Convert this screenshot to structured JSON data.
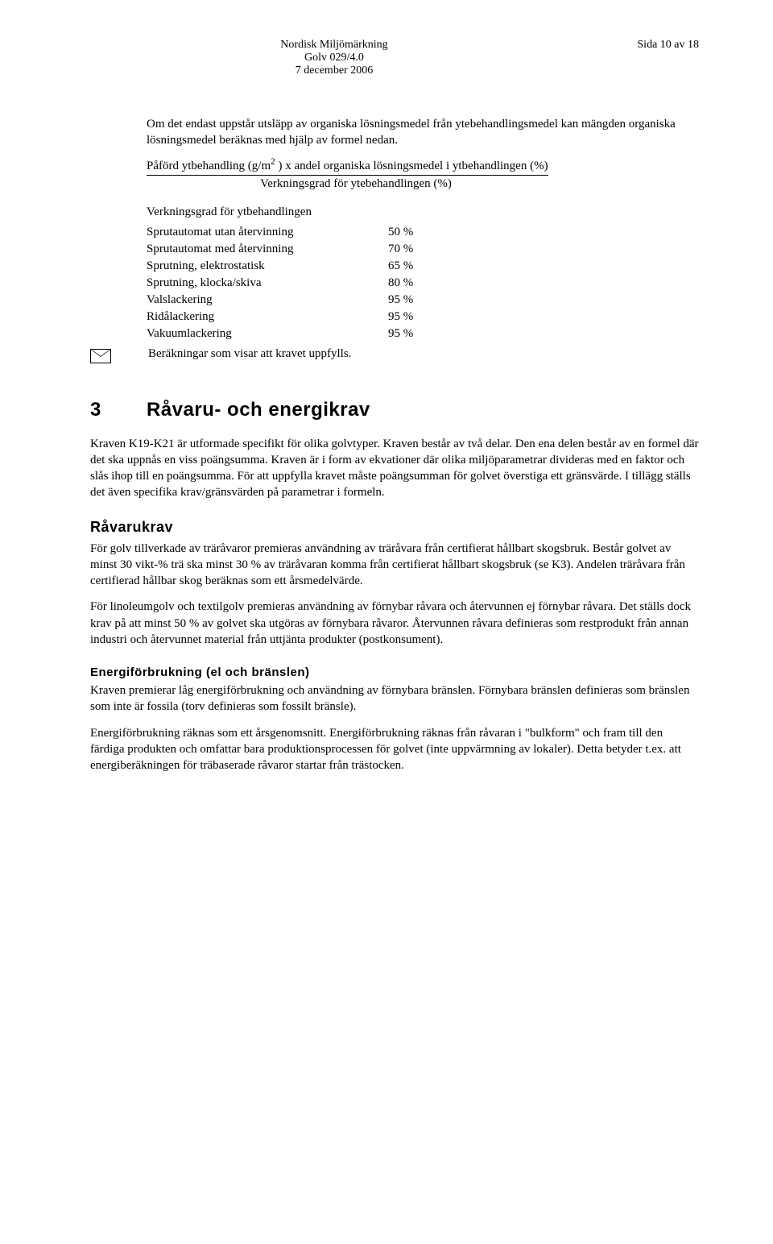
{
  "header": {
    "line1": "Nordisk Miljömärkning",
    "line2": "Golv 029/4.0",
    "line3": "7 december 2006",
    "page_label": "Sida 10 av 18"
  },
  "intro": {
    "p1": "Om det endast uppstår utsläpp av organiska lösningsmedel från ytebehandlingsmedel kan mängden organiska lösningsmedel beräknas med hjälp av formel nedan."
  },
  "formula": {
    "numerator_a": "Påförd ytbehandling (g/m",
    "numerator_sup": "2",
    "numerator_b": " ) x andel organiska lösningsmedel i ytbehandlingen (%)",
    "denominator": "Verkningsgrad för ytebehandlingen (%)"
  },
  "vg": {
    "heading": "Verkningsgrad för ytbehandlingen",
    "rows": [
      {
        "label": "Sprutautomat utan återvinning",
        "value": "50 %"
      },
      {
        "label": "Sprutautomat med återvinning",
        "value": "70 %"
      },
      {
        "label": "Sprutning, elektrostatisk",
        "value": "65 %"
      },
      {
        "label": "Sprutning, klocka/skiva",
        "value": "80 %"
      },
      {
        "label": "Valslackering",
        "value": "95 %"
      },
      {
        "label": "Ridålackering",
        "value": "95 %"
      },
      {
        "label": "Vakuumlackering",
        "value": "95 %"
      }
    ]
  },
  "mail_note": "Beräkningar som visar att kravet uppfylls.",
  "section3": {
    "num": "3",
    "title": "Råvaru- och energikrav",
    "p1": "Kraven K19-K21 är utformade specifikt för olika golvtyper. Kraven består av två delar. Den ena delen består av en formel där det ska uppnås en viss poängsumma. Kraven är i form av ekvationer där olika miljöparametrar divideras med en faktor och slås ihop till en poängsumma. För att uppfylla kravet måste poängsumman för golvet överstiga ett gränsvärde. I tillägg ställs det även specifika krav/gränsvärden på parametrar i formeln.",
    "ravarukrav": {
      "title": "Råvarukrav",
      "p1": "För golv tillverkade av träråvaror premieras användning av träråvara från certifierat hållbart skogsbruk. Består golvet av minst 30 vikt-% trä ska minst 30 % av träråvaran komma från certifierat hållbart skogsbruk (se K3). Andelen träråvara från certifierad hållbar skog beräknas som ett årsmedelvärde.",
      "p2": "För linoleumgolv och textilgolv premieras användning av förnybar råvara och återvunnen ej förnybar råvara. Det ställs dock krav på att minst 50 % av golvet ska utgöras av förnybara råvaror. Återvunnen råvara definieras som restprodukt från annan industri och återvunnet material från uttjänta produkter (postkonsument)."
    },
    "energi": {
      "title": "Energiförbrukning (el och bränslen)",
      "p1": "Kraven premierar låg energiförbrukning och användning av förnybara bränslen. Förnybara bränslen definieras som bränslen som inte är fossila (torv definieras som fossilt bränsle).",
      "p2": "Energiförbrukning räknas som ett årsgenomsnitt. Energiförbrukning räknas från råvaran i \"bulkform\" och fram till den färdiga produkten och omfattar bara produktionsprocessen för golvet (inte uppvärmning av lokaler). Detta betyder t.ex. att energiberäkningen för träbaserade råvaror startar från trästocken."
    }
  }
}
